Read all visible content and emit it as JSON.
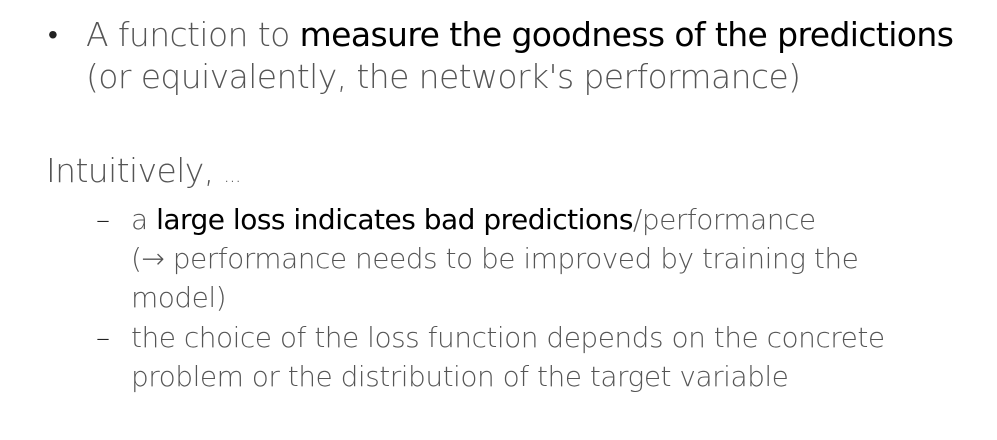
{
  "bullet1": {
    "marker": "•",
    "prefix": "A function to ",
    "emphasis": "measure the goodness of the predictions",
    "line2": "(or equivalently, the network's performance)"
  },
  "intro": {
    "text": "Intuitively, ",
    "ellipsis": "..."
  },
  "sub1": {
    "marker": "–",
    "prefix": "a ",
    "emphasis": "large loss indicates bad predictions",
    "suffix": "/performance",
    "line2": "(→ performance needs to be improved by training the",
    "line3": "model)"
  },
  "sub2": {
    "marker": "–",
    "line1": "the choice of the loss function depends on the concrete",
    "line2": "problem or the distribution of the target variable"
  }
}
